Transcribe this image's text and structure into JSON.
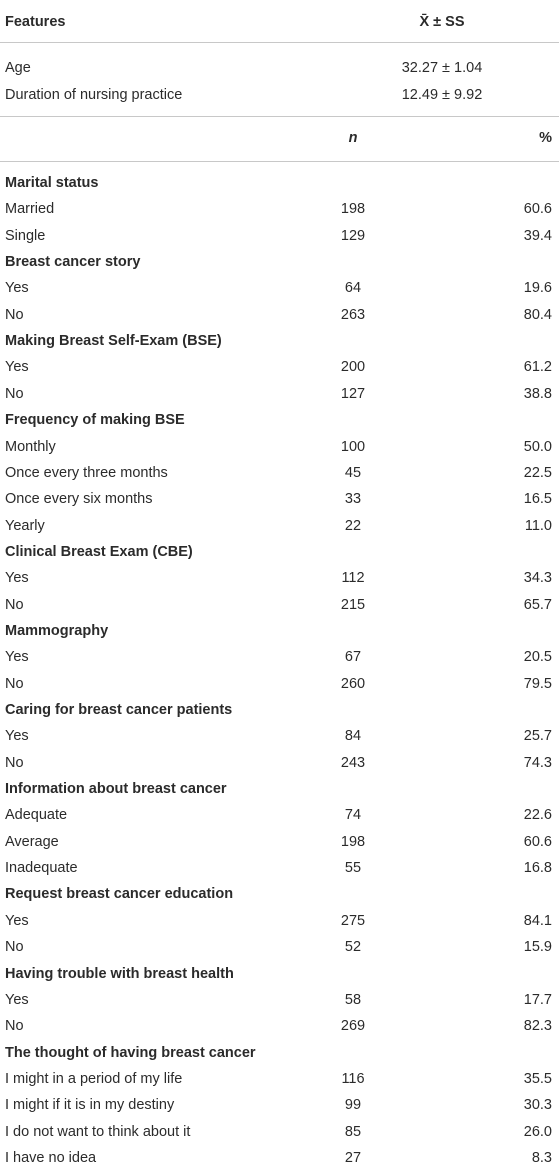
{
  "header": {
    "features": "Features",
    "stat": "X̄ ± SS"
  },
  "continuous": [
    {
      "label": "Age",
      "value": "32.27 ± 1.04"
    },
    {
      "label": "Duration of nursing practice",
      "value": "12.49 ± 9.92"
    }
  ],
  "subheader": {
    "n": "n",
    "percent": "%"
  },
  "groups": [
    {
      "title": "Marital status",
      "rows": [
        {
          "label": "Married",
          "n": "198",
          "percent": "60.6"
        },
        {
          "label": "Single",
          "n": "129",
          "percent": "39.4"
        }
      ]
    },
    {
      "title": "Breast cancer story",
      "rows": [
        {
          "label": "Yes",
          "n": "64",
          "percent": "19.6"
        },
        {
          "label": "No",
          "n": "263",
          "percent": "80.4"
        }
      ]
    },
    {
      "title": "Making Breast Self-Exam (BSE)",
      "rows": [
        {
          "label": "Yes",
          "n": "200",
          "percent": "61.2"
        },
        {
          "label": "No",
          "n": "127",
          "percent": "38.8"
        }
      ]
    },
    {
      "title": "Frequency of making BSE",
      "rows": [
        {
          "label": "Monthly",
          "n": "100",
          "percent": "50.0"
        },
        {
          "label": "Once every three months",
          "n": "45",
          "percent": "22.5"
        },
        {
          "label": "Once every six months",
          "n": "33",
          "percent": "16.5"
        },
        {
          "label": "Yearly",
          "n": "22",
          "percent": "11.0"
        }
      ]
    },
    {
      "title": "Clinical Breast Exam (CBE)",
      "rows": [
        {
          "label": "Yes",
          "n": "112",
          "percent": "34.3"
        },
        {
          "label": "No",
          "n": "215",
          "percent": "65.7"
        }
      ]
    },
    {
      "title": "Mammography",
      "rows": [
        {
          "label": "Yes",
          "n": "67",
          "percent": "20.5"
        },
        {
          "label": "No",
          "n": "260",
          "percent": "79.5"
        }
      ]
    },
    {
      "title": "Caring for breast cancer patients",
      "rows": [
        {
          "label": "Yes",
          "n": "84",
          "percent": "25.7"
        },
        {
          "label": "No",
          "n": "243",
          "percent": "74.3"
        }
      ]
    },
    {
      "title": "Information about breast cancer",
      "rows": [
        {
          "label": "Adequate",
          "n": "74",
          "percent": "22.6"
        },
        {
          "label": "Average",
          "n": "198",
          "percent": "60.6"
        },
        {
          "label": "Inadequate",
          "n": "55",
          "percent": "16.8"
        }
      ]
    },
    {
      "title": "Request breast cancer education",
      "rows": [
        {
          "label": "Yes",
          "n": "275",
          "percent": "84.1"
        },
        {
          "label": "No",
          "n": "52",
          "percent": "15.9"
        }
      ]
    },
    {
      "title": "Having trouble with breast health",
      "rows": [
        {
          "label": "Yes",
          "n": "58",
          "percent": "17.7"
        },
        {
          "label": "No",
          "n": "269",
          "percent": "82.3"
        }
      ]
    },
    {
      "title": "The thought of having breast cancer",
      "rows": [
        {
          "label": "I might in a period of my life",
          "n": "116",
          "percent": "35.5"
        },
        {
          "label": "I might if it is in my destiny",
          "n": "99",
          "percent": "30.3"
        },
        {
          "label": "I do not want to think about it",
          "n": "85",
          "percent": "26.0"
        },
        {
          "label": "I have no idea",
          "n": "27",
          "percent": "8.3"
        }
      ]
    }
  ]
}
